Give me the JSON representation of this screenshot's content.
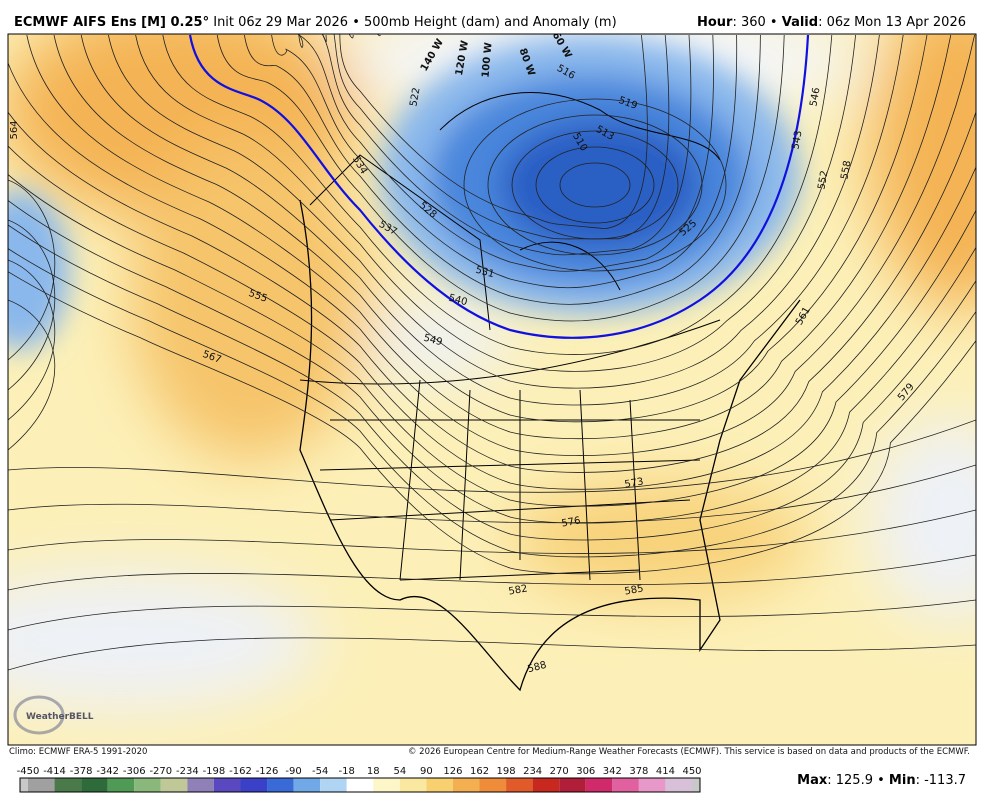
{
  "header": {
    "title": "ECMWF AIFS Ens [M] 0.25°",
    "subtitle": "Init 06z 29 Mar 2026 • 500mb Height (dam) and Anomaly (m)",
    "valid": [
      {
        "text": "Hour",
        "bold": true
      },
      {
        "text": ": 360 • "
      },
      {
        "text": "Valid",
        "bold": true
      },
      {
        "text": ": 06z Mon 13 Apr 2026"
      }
    ]
  },
  "map": {
    "contour_labels": [
      "564",
      "555",
      "567",
      "534",
      "537",
      "528",
      "522",
      "531",
      "540",
      "549",
      "516",
      "519",
      "513",
      "510",
      "525",
      "543",
      "546",
      "552",
      "558",
      "561",
      "579",
      "573",
      "576",
      "582",
      "585",
      "588"
    ],
    "longitude_labels": [
      "140 W",
      "120 W",
      "100 W",
      "80 W",
      "60 W"
    ],
    "logo": "WeatherBELL"
  },
  "footer": {
    "climo": "Climo: ECMWF ERA-5 1991-2020",
    "copyright": "© 2026 European Centre for Medium-Range Weather Forecasts (ECMWF). This service is based on data and products of the ECMWF."
  },
  "colorbar": {
    "labels": [
      "-450",
      "-414",
      "-378",
      "-342",
      "-306",
      "-270",
      "-234",
      "-198",
      "-162",
      "-126",
      "-90",
      "-54",
      "-18",
      "18",
      "54",
      "90",
      "126",
      "162",
      "198",
      "234",
      "270",
      "306",
      "342",
      "378",
      "414",
      "450"
    ],
    "colors": [
      "#a0a0a0",
      "#4a7a4a",
      "#2f6a3a",
      "#4f9a55",
      "#8ab87a",
      "#c0c898",
      "#9080b8",
      "#5a48c0",
      "#3a40c8",
      "#3a6ad8",
      "#70a8e8",
      "#b0d4f4",
      "#ffffff",
      "#fdf6c8",
      "#fbe8a0",
      "#f8d070",
      "#f4b050",
      "#ee8c3a",
      "#e05a2a",
      "#c8281e",
      "#b01e3a",
      "#d02a6a",
      "#e060a0",
      "#e898c8",
      "#d8c0d8"
    ]
  },
  "stats": [
    {
      "text": "Max",
      "bold": true
    },
    {
      "text": ": 125.9 • "
    },
    {
      "text": "Min",
      "bold": true
    },
    {
      "text": ": -113.7"
    }
  ]
}
